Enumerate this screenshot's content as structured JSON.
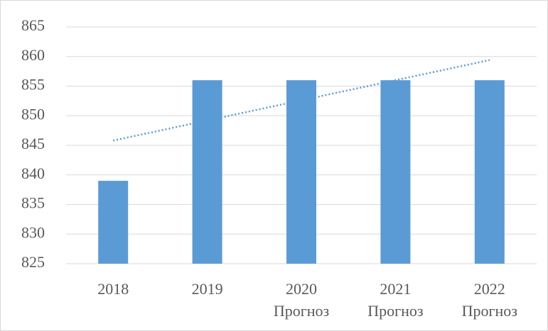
{
  "chart_data": {
    "type": "bar",
    "categories": [
      "2018",
      "2019",
      "2020\nПрогноз",
      "2021\nПрогноз",
      "2022\nПрогноз"
    ],
    "values": [
      839,
      856,
      856,
      856,
      856
    ],
    "color": "#5b9bd5",
    "trendline": "linear",
    "trendline_color": "#5b9bd5",
    "ylim": [
      825,
      865
    ],
    "yticks": [
      825,
      830,
      835,
      840,
      845,
      850,
      855,
      860,
      865
    ],
    "grid": true
  }
}
